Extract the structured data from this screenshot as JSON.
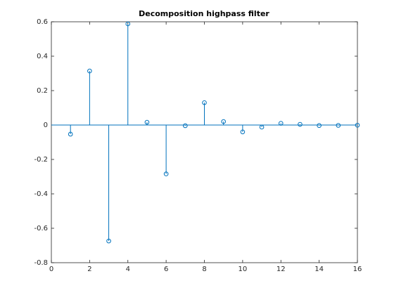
{
  "chart_data": {
    "type": "stem",
    "title": "Decomposition highpass filter",
    "x": [
      1,
      2,
      3,
      4,
      5,
      6,
      7,
      8,
      9,
      10,
      11,
      12,
      13,
      14,
      15,
      16
    ],
    "values": [
      -0.053,
      0.314,
      -0.674,
      0.588,
      0.016,
      -0.284,
      -0.004,
      0.13,
      0.02,
      -0.04,
      -0.012,
      0.01,
      0.004,
      -0.003,
      -0.002,
      -0.001
    ],
    "color": "#0072bd",
    "xlim": [
      0,
      16
    ],
    "xticks": [
      0,
      2,
      4,
      6,
      8,
      10,
      12,
      14,
      16
    ],
    "ylim": [
      -0.8,
      0.6
    ],
    "yticks": [
      -0.8,
      -0.6,
      -0.4,
      -0.2,
      0,
      0.2,
      0.4,
      0.6
    ]
  }
}
